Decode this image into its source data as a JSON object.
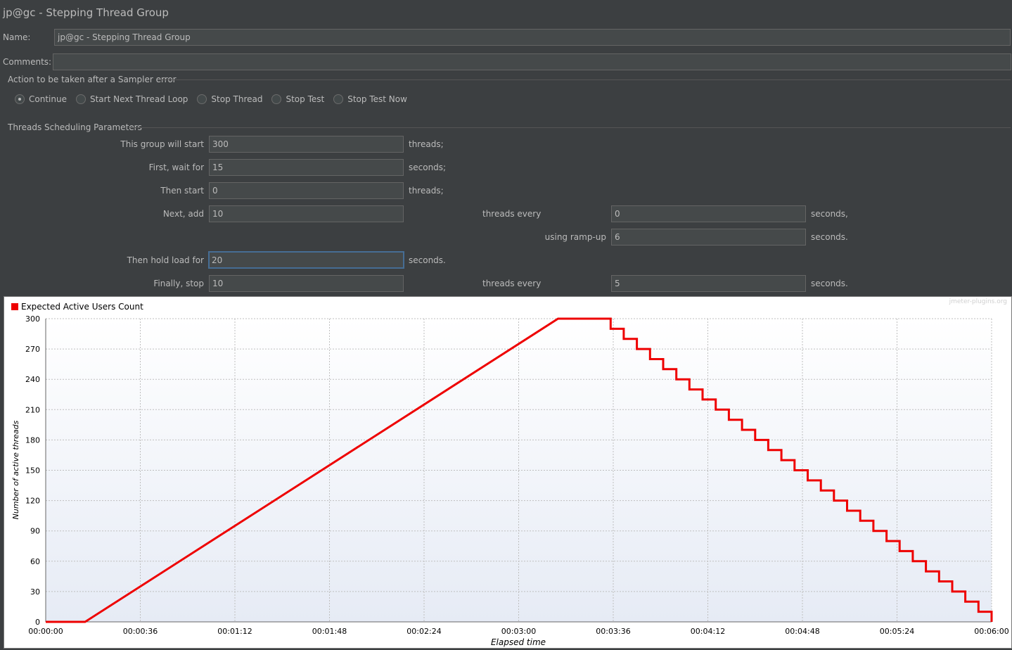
{
  "header": {
    "title": "jp@gc - Stepping Thread Group"
  },
  "form": {
    "name_label": "Name:",
    "name_value": "jp@gc - Stepping Thread Group",
    "comments_label": "Comments:",
    "comments_value": ""
  },
  "sampler_error": {
    "legend": "Action to be taken after a Sampler error",
    "options": [
      {
        "label": "Continue",
        "selected": true
      },
      {
        "label": "Start Next Thread Loop",
        "selected": false
      },
      {
        "label": "Stop Thread",
        "selected": false
      },
      {
        "label": "Stop Test",
        "selected": false
      },
      {
        "label": "Stop Test Now",
        "selected": false
      }
    ]
  },
  "scheduling": {
    "legend": "Threads Scheduling Parameters",
    "start_label": "This group will start",
    "start_value": "300",
    "start_unit": "threads;",
    "wait_label": "First, wait for",
    "wait_value": "15",
    "wait_unit": "seconds;",
    "then_start_label": "Then start",
    "then_start_value": "0",
    "then_start_unit": "threads;",
    "next_add_label": "Next, add",
    "next_add_value": "10",
    "next_add_mid": "threads every",
    "next_add_every_value": "0",
    "next_add_every_unit": "seconds,",
    "rampup_label": "using ramp-up",
    "rampup_value": "6",
    "rampup_unit": "seconds.",
    "hold_label": "Then hold load for",
    "hold_value": "20",
    "hold_unit": "seconds.",
    "stop_label": "Finally, stop",
    "stop_value": "10",
    "stop_mid": "threads every",
    "stop_every_value": "5",
    "stop_every_unit": "seconds."
  },
  "chart_data": {
    "type": "line",
    "watermark": "jmeter-plugins.org",
    "xlabel": "Elapsed time",
    "ylabel": "Number of active threads",
    "legend": "top-left",
    "ylim": [
      0,
      300
    ],
    "xlim": [
      0,
      360
    ],
    "y_ticks": [
      "0",
      "30",
      "60",
      "90",
      "120",
      "150",
      "180",
      "210",
      "240",
      "270",
      "300"
    ],
    "x_ticks": [
      "00:00:00",
      "00:00:36",
      "00:01:12",
      "00:01:48",
      "00:02:24",
      "00:03:00",
      "00:03:36",
      "00:04:12",
      "00:04:48",
      "00:05:24",
      "00:06:00"
    ],
    "series_color": "#ee0000",
    "series": [
      {
        "name": "Expected Active Users Count",
        "x": [
          0,
          15,
          195,
          215,
          215,
          220,
          220,
          225,
          225,
          230,
          230,
          235,
          235,
          240,
          240,
          245,
          245,
          250,
          250,
          255,
          255,
          260,
          260,
          265,
          265,
          270,
          270,
          275,
          275,
          280,
          280,
          285,
          285,
          290,
          290,
          295,
          295,
          300,
          300,
          305,
          305,
          310,
          310,
          315,
          315,
          320,
          320,
          325,
          325,
          330,
          330,
          335,
          335,
          340,
          340,
          345,
          345,
          350,
          350,
          355,
          355,
          360,
          360
        ],
        "y": [
          0,
          0,
          300,
          300,
          290,
          290,
          280,
          280,
          270,
          270,
          260,
          260,
          250,
          250,
          240,
          240,
          230,
          230,
          220,
          220,
          210,
          210,
          200,
          200,
          190,
          190,
          180,
          180,
          170,
          170,
          160,
          160,
          150,
          150,
          140,
          140,
          130,
          130,
          120,
          120,
          110,
          110,
          100,
          100,
          90,
          90,
          80,
          80,
          70,
          70,
          60,
          60,
          50,
          50,
          40,
          40,
          30,
          30,
          20,
          20,
          10,
          10,
          0
        ]
      }
    ]
  }
}
